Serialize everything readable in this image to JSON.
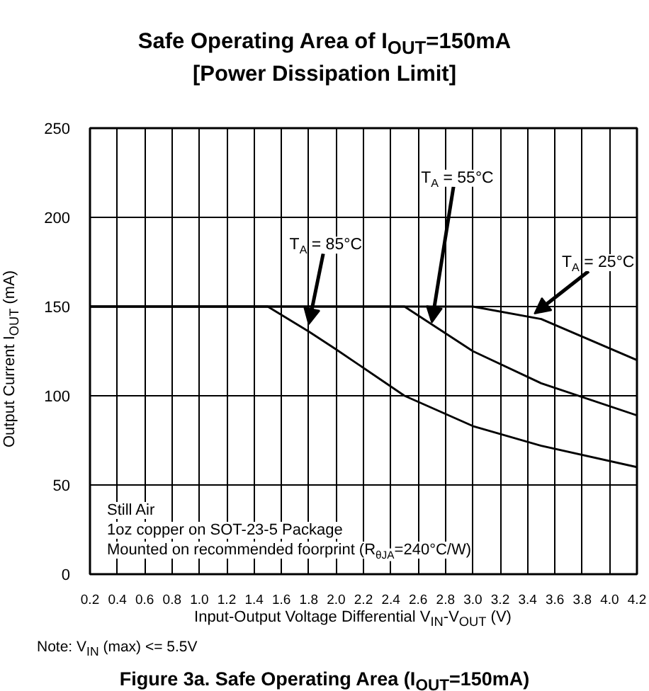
{
  "chart_data": {
    "type": "line",
    "title": "Safe Operating Area of I$_{OUT}$=150mA\n[Power Dissipation Limit]",
    "xlabel": "Input-Output Voltage Differential V$_{IN}$-V$_{OUT}$ (V)",
    "ylabel": "Output Current I$_{OUT}$ (mA)",
    "series": [
      {
        "color": "#000000",
        "x": [
          0.2,
          1.5,
          1.8,
          2.0,
          2.5,
          3.0,
          3.5,
          4.2
        ],
        "values": [
          150,
          150,
          136,
          126,
          100,
          83,
          72,
          60
        ]
      },
      {
        "color": "#000000",
        "x": [
          0.2,
          2.5,
          3.0,
          3.5,
          4.2
        ],
        "values": [
          150,
          150,
          125,
          107,
          89
        ]
      },
      {
        "color": "#000000",
        "x": [
          0.2,
          3.0,
          3.5,
          4.2
        ],
        "values": [
          150,
          150,
          143,
          120
        ]
      }
    ],
    "xlim": [
      0.2,
      4.2
    ],
    "ylim": [
      0,
      250
    ],
    "xticks": [
      0.2,
      0.4,
      0.6,
      0.8,
      {
        "value": 1,
        "label": "1.0"
      },
      1.2,
      1.4,
      1.6,
      1.8,
      {
        "value": 2,
        "label": "2.0"
      },
      2.2,
      2.4,
      2.6,
      2.8,
      {
        "value": 3,
        "label": "3.0"
      },
      3.2,
      3.4,
      3.6,
      3.8,
      {
        "value": 4,
        "label": "4.0"
      },
      4.2
    ],
    "yticks": [
      0,
      50,
      100,
      150,
      200,
      250
    ],
    "grid": true,
    "marker": "none",
    "line_style": "solid",
    "annotations": [
      {
        "text": "T$_{A}$ = 85°C",
        "x": 1.8,
        "y": 140
      },
      {
        "text": "T$_{A}$ = 55°C",
        "x": 2.7,
        "y": 141
      },
      {
        "text": "T$_{A}$ = 25°C",
        "x": 3.45,
        "y": 146
      },
      "Still Air\n1oz copper on SOT-23-5 Package\nMounted on recommended foorprint (R$_{θJA}$=240°C/W)",
      "Note: V$_{IN}$ (max) <= 5.5V",
      "Figure 3a. Safe Operating Area (I$_{OUT}$=150mA)"
    ]
  }
}
